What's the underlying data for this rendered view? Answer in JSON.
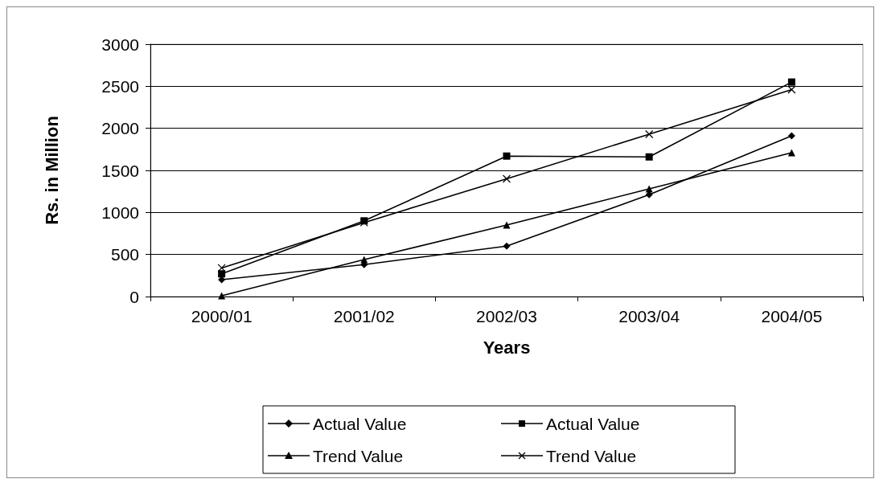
{
  "chart_data": {
    "type": "line",
    "xlabel": "Years",
    "ylabel": "Rs. in Million",
    "categories": [
      "2000/01",
      "2001/02",
      "2002/03",
      "2003/04",
      "2004/05"
    ],
    "series": [
      {
        "name": "Actual Value",
        "color": "#000000",
        "marker": "diamond",
        "values": [
          200,
          380,
          600,
          1210,
          1910
        ]
      },
      {
        "name": "Actual Value",
        "color": "#000000",
        "marker": "square",
        "values": [
          270,
          900,
          1670,
          1660,
          2550
        ]
      },
      {
        "name": "Trend Value",
        "color": "#000000",
        "marker": "triangle",
        "values": [
          10,
          440,
          850,
          1280,
          1710
        ]
      },
      {
        "name": "Trend Value",
        "color": "#000000",
        "marker": "cross",
        "values": [
          340,
          880,
          1400,
          1930,
          2460
        ]
      }
    ],
    "ylim": [
      0,
      3000
    ],
    "yticks": [
      0,
      500,
      1000,
      1500,
      2000,
      2500,
      3000
    ],
    "grid": "y",
    "legend": "bottom",
    "line_style": "solid"
  }
}
